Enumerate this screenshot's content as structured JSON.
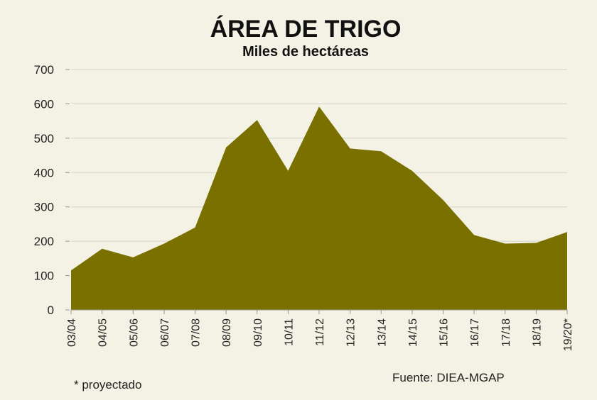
{
  "chart_data": {
    "type": "area",
    "title": "ÁREA DE TRIGO",
    "subtitle": "Miles de hectáreas",
    "categories": [
      "03/04",
      "04/05",
      "05/06",
      "06/07",
      "07/08",
      "08/09",
      "09/10",
      "10/11",
      "11/12",
      "12/13",
      "13/14",
      "14/15",
      "15/16",
      "16/17",
      "17/18",
      "18/19",
      "19/20*"
    ],
    "series": [
      {
        "values": [
          115,
          178,
          153,
          193,
          240,
          473,
          553,
          405,
          592,
          470,
          462,
          405,
          320,
          218,
          193,
          195,
          227
        ]
      }
    ],
    "ylim": [
      0,
      700
    ],
    "yticks": [
      0,
      100,
      200,
      300,
      400,
      500,
      600,
      700
    ],
    "grid": true,
    "legend": "none",
    "fill_color": "#7a7000"
  },
  "footnote": "* proyectado",
  "source": "Fuente:  DIEA-MGAP"
}
